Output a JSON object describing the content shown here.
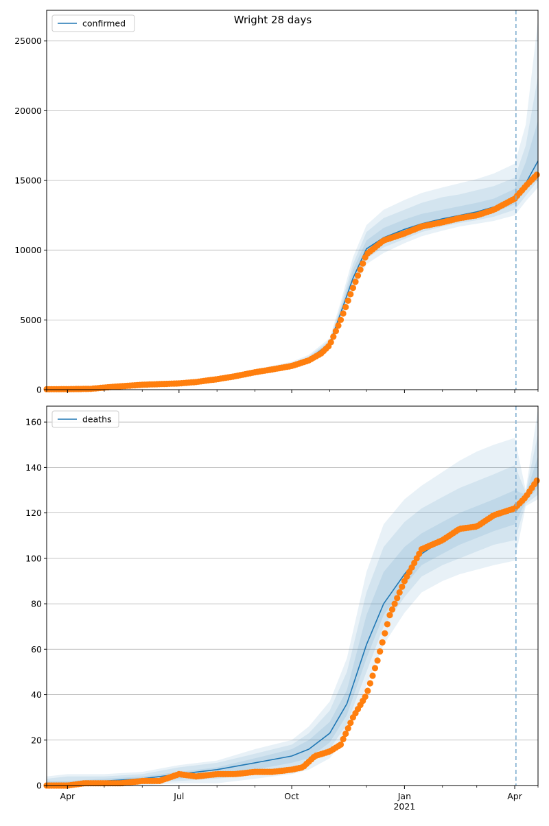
{
  "figure": {
    "title": "Wright 28 days"
  },
  "date_axis": {
    "start": "2020-03-15",
    "end": "2021-04-20",
    "major_ticks": [
      {
        "date": "2020-04-01",
        "label": "Apr",
        "sublabel": ""
      },
      {
        "date": "2020-07-01",
        "label": "Jul",
        "sublabel": ""
      },
      {
        "date": "2020-10-01",
        "label": "Oct",
        "sublabel": ""
      },
      {
        "date": "2021-01-01",
        "label": "Jan",
        "sublabel": "2021"
      },
      {
        "date": "2021-04-01",
        "label": "Apr",
        "sublabel": ""
      }
    ],
    "minor_ticks": [
      "2020-03-15",
      "2020-05-01",
      "2020-06-01",
      "2020-08-01",
      "2020-09-01",
      "2020-11-01",
      "2020-12-01",
      "2021-02-01",
      "2021-03-01",
      "2021-04-20"
    ]
  },
  "chart_data": [
    {
      "type": "line",
      "xlabel": "",
      "ylabel": "",
      "ylim": [
        0,
        27200
      ],
      "yticks": [
        0,
        5000,
        10000,
        15000,
        20000,
        25000
      ],
      "grid": "y",
      "legend": {
        "position": "top-left",
        "entries": [
          "confirmed"
        ]
      },
      "forecast_start": "2021-04-02",
      "colors": {
        "model": "#1f77b4",
        "observed": "#ff7f0e",
        "band": "#1f77b4",
        "vline": "#7fadd0"
      },
      "model": {
        "x": [
          "2020-03-15",
          "2020-04-01",
          "2020-05-01",
          "2020-06-01",
          "2020-07-01",
          "2020-08-01",
          "2020-09-01",
          "2020-10-01",
          "2020-10-15",
          "2020-11-01",
          "2020-11-10",
          "2020-11-20",
          "2020-12-01",
          "2020-12-15",
          "2021-01-01",
          "2021-01-15",
          "2021-02-01",
          "2021-02-15",
          "2021-03-01",
          "2021-03-15",
          "2021-04-01",
          "2021-04-10",
          "2021-04-20"
        ],
        "y": [
          50,
          60,
          150,
          350,
          450,
          800,
          1250,
          1750,
          2200,
          3300,
          5500,
          8000,
          10100,
          10900,
          11500,
          11900,
          12250,
          12500,
          12750,
          13100,
          13800,
          14800,
          16400
        ]
      },
      "bands": [
        {
          "lower": [
            20,
            30,
            100,
            280,
            380,
            700,
            1100,
            1600,
            2000,
            3000,
            5000,
            7000,
            9000,
            9800,
            10500,
            11000,
            11400,
            11700,
            11900,
            12100,
            12500,
            13500,
            14500
          ],
          "upper": [
            120,
            140,
            250,
            450,
            560,
            950,
            1450,
            2000,
            2500,
            3700,
            6300,
            9500,
            11800,
            12900,
            13600,
            14100,
            14500,
            14800,
            15100,
            15500,
            16200,
            19000,
            26500
          ]
        },
        {
          "lower": [
            30,
            40,
            120,
            300,
            400,
            730,
            1150,
            1650,
            2070,
            3100,
            5200,
            7400,
            9400,
            10200,
            10800,
            11300,
            11700,
            11950,
            12150,
            12400,
            12900,
            13900,
            15000
          ],
          "upper": [
            90,
            100,
            210,
            420,
            520,
            890,
            1380,
            1900,
            2390,
            3550,
            6000,
            9000,
            11300,
            12300,
            12900,
            13400,
            13800,
            14000,
            14300,
            14600,
            15200,
            17500,
            22500
          ]
        },
        {
          "lower": [
            35,
            45,
            130,
            320,
            420,
            760,
            1200,
            1690,
            2130,
            3200,
            5350,
            7700,
            9700,
            10500,
            11100,
            11550,
            11950,
            12200,
            12420,
            12700,
            13300,
            14300,
            15500
          ],
          "upper": [
            70,
            80,
            180,
            390,
            490,
            840,
            1310,
            1830,
            2300,
            3430,
            5750,
            8600,
            10700,
            11600,
            12200,
            12600,
            12900,
            13150,
            13400,
            13700,
            14400,
            16300,
            19300
          ]
        }
      ],
      "observed": {
        "x": [
          "2020-03-15",
          "2020-04-01",
          "2020-04-20",
          "2020-05-01",
          "2020-05-15",
          "2020-06-01",
          "2020-06-15",
          "2020-07-01",
          "2020-07-15",
          "2020-08-01",
          "2020-08-15",
          "2020-09-01",
          "2020-09-15",
          "2020-10-01",
          "2020-10-15",
          "2020-10-25",
          "2020-11-01",
          "2020-11-10",
          "2020-11-20",
          "2020-12-01",
          "2020-12-15",
          "2021-01-01",
          "2021-01-15",
          "2021-02-01",
          "2021-02-15",
          "2021-03-01",
          "2021-03-15",
          "2021-04-01",
          "2021-04-10",
          "2021-04-20"
        ],
        "y": [
          30,
          40,
          60,
          150,
          250,
          350,
          400,
          450,
          550,
          750,
          950,
          1250,
          1450,
          1700,
          2100,
          2600,
          3200,
          5000,
          7300,
          9700,
          10700,
          11200,
          11700,
          12000,
          12300,
          12500,
          12900,
          13700,
          14600,
          15500
        ]
      }
    },
    {
      "type": "line",
      "xlabel": "",
      "ylabel": "",
      "ylim": [
        0,
        167
      ],
      "yticks": [
        0,
        20,
        40,
        60,
        80,
        100,
        120,
        140,
        160
      ],
      "grid": "y",
      "legend": {
        "position": "top-left",
        "entries": [
          "deaths"
        ]
      },
      "forecast_start": "2021-04-02",
      "colors": {
        "model": "#1f77b4",
        "observed": "#ff7f0e",
        "band": "#1f77b4",
        "vline": "#7fadd0"
      },
      "model": {
        "x": [
          "2020-03-15",
          "2020-04-01",
          "2020-05-01",
          "2020-06-01",
          "2020-07-01",
          "2020-08-01",
          "2020-09-01",
          "2020-10-01",
          "2020-10-15",
          "2020-11-01",
          "2020-11-15",
          "2020-12-01",
          "2020-12-15",
          "2021-01-01",
          "2021-01-15",
          "2021-02-01",
          "2021-02-15",
          "2021-03-01",
          "2021-03-15",
          "2021-04-01",
          "2021-04-10",
          "2021-04-20"
        ],
        "y": [
          1,
          1,
          2,
          3,
          5,
          7,
          10,
          13,
          16,
          23,
          36,
          62,
          80,
          93,
          102,
          108,
          112,
          115,
          118,
          122,
          126,
          135
        ]
      },
      "bands": [
        {
          "lower": [
            0,
            0,
            0,
            0,
            1,
            1,
            3,
            5,
            7,
            12,
            22,
            44,
            62,
            76,
            85,
            90,
            93,
            95,
            97,
            99,
            123,
            126
          ],
          "upper": [
            4,
            5,
            5,
            6,
            9,
            11,
            16,
            20,
            26,
            37,
            56,
            94,
            115,
            126,
            132,
            138,
            143,
            147,
            150,
            153,
            130,
            166
          ]
        },
        {
          "lower": [
            0,
            0,
            1,
            1,
            2,
            3,
            5,
            7,
            10,
            16,
            27,
            50,
            70,
            83,
            92,
            97,
            100,
            103,
            106,
            108,
            124,
            128
          ],
          "upper": [
            3,
            4,
            4,
            5,
            8,
            10,
            14,
            18,
            23,
            33,
            50,
            85,
            105,
            116,
            122,
            127,
            131,
            134,
            137,
            141,
            129,
            155
          ]
        },
        {
          "lower": [
            0,
            0,
            1,
            2,
            3,
            5,
            7,
            10,
            12,
            19,
            31,
            56,
            75,
            88,
            97,
            102,
            106,
            109,
            112,
            115,
            125,
            131
          ],
          "upper": [
            2,
            2,
            3,
            4,
            6,
            8,
            12,
            16,
            20,
            28,
            42,
            75,
            94,
            105,
            111,
            116,
            120,
            123,
            126,
            130,
            128,
            145
          ]
        }
      ],
      "observed": {
        "x": [
          "2020-03-15",
          "2020-04-01",
          "2020-04-15",
          "2020-05-01",
          "2020-05-15",
          "2020-06-01",
          "2020-06-15",
          "2020-07-01",
          "2020-07-15",
          "2020-08-01",
          "2020-08-15",
          "2020-09-01",
          "2020-09-15",
          "2020-10-01",
          "2020-10-10",
          "2020-10-20",
          "2020-11-01",
          "2020-11-10",
          "2020-11-20",
          "2020-12-01",
          "2020-12-10",
          "2020-12-20",
          "2021-01-01",
          "2021-01-15",
          "2021-02-01",
          "2021-02-15",
          "2021-03-01",
          "2021-03-15",
          "2021-04-01",
          "2021-04-10",
          "2021-04-20"
        ],
        "y": [
          0,
          0,
          1,
          1,
          1,
          2,
          2,
          5,
          4,
          5,
          5,
          6,
          6,
          7,
          8,
          13,
          15,
          18,
          30,
          40,
          55,
          75,
          90,
          104,
          108,
          113,
          114,
          119,
          122,
          127,
          135
        ]
      }
    }
  ]
}
